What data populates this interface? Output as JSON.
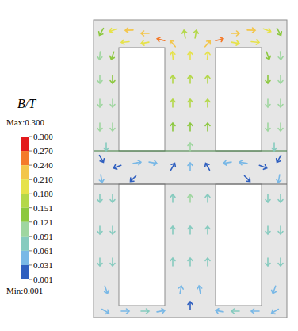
{
  "chart_data": {
    "type": "vector_field",
    "xlim": [
      0,
      244
    ],
    "ylim": [
      0,
      375
    ],
    "tick_labels": false,
    "colorbar": {
      "title": "B/T",
      "max_label": "Max:0.300",
      "min_label": "Min:0.001",
      "range": [
        0.001,
        0.3
      ],
      "ticks": [
        {
          "value": 0.3,
          "label": "0.300"
        },
        {
          "value": 0.27,
          "label": "0.270"
        },
        {
          "value": 0.24,
          "label": "0.240"
        },
        {
          "value": 0.21,
          "label": "0.210"
        },
        {
          "value": 0.18,
          "label": "0.180"
        },
        {
          "value": 0.151,
          "label": "0.151"
        },
        {
          "value": 0.121,
          "label": "0.121"
        },
        {
          "value": 0.091,
          "label": "0.091"
        },
        {
          "value": 0.061,
          "label": "0.061"
        },
        {
          "value": 0.031,
          "label": "0.031"
        },
        {
          "value": 0.001,
          "label": "0.001"
        }
      ],
      "colors": [
        "#e31a1c",
        "#f47a2a",
        "#f3c64b",
        "#e6e24a",
        "#b4d84a",
        "#8cc83f",
        "#9fd6a0",
        "#86cbbf",
        "#79b8e6",
        "#2f5fbf"
      ]
    },
    "vectors": [
      {
        "x": 10,
        "y": 360,
        "angle": 240,
        "B": 0.13
      },
      {
        "x": 25,
        "y": 362,
        "angle": 200,
        "B": 0.18
      },
      {
        "x": 45,
        "y": 362,
        "angle": 182,
        "B": 0.21
      },
      {
        "x": 65,
        "y": 358,
        "angle": 180,
        "B": 0.23
      },
      {
        "x": 85,
        "y": 350,
        "angle": 165,
        "B": 0.26
      },
      {
        "x": 100,
        "y": 345,
        "angle": 130,
        "B": 0.22
      },
      {
        "x": 115,
        "y": 357,
        "angle": 100,
        "B": 0.16
      },
      {
        "x": 129,
        "y": 357,
        "angle": 80,
        "B": 0.16
      },
      {
        "x": 144,
        "y": 345,
        "angle": 50,
        "B": 0.22
      },
      {
        "x": 159,
        "y": 350,
        "angle": 15,
        "B": 0.26
      },
      {
        "x": 179,
        "y": 358,
        "angle": 0,
        "B": 0.23
      },
      {
        "x": 199,
        "y": 362,
        "angle": 358,
        "B": 0.21
      },
      {
        "x": 219,
        "y": 362,
        "angle": 340,
        "B": 0.18
      },
      {
        "x": 234,
        "y": 360,
        "angle": 300,
        "B": 0.13
      },
      {
        "x": 40,
        "y": 347,
        "angle": 185,
        "B": 0.19
      },
      {
        "x": 65,
        "y": 346,
        "angle": 190,
        "B": 0.2
      },
      {
        "x": 179,
        "y": 346,
        "angle": 350,
        "B": 0.2
      },
      {
        "x": 204,
        "y": 347,
        "angle": 355,
        "B": 0.19
      },
      {
        "x": 8,
        "y": 330,
        "angle": 265,
        "B": 0.12
      },
      {
        "x": 24,
        "y": 330,
        "angle": 250,
        "B": 0.15
      },
      {
        "x": 8,
        "y": 300,
        "angle": 270,
        "B": 0.12
      },
      {
        "x": 24,
        "y": 300,
        "angle": 270,
        "B": 0.13
      },
      {
        "x": 8,
        "y": 270,
        "angle": 270,
        "B": 0.11
      },
      {
        "x": 24,
        "y": 270,
        "angle": 270,
        "B": 0.12
      },
      {
        "x": 8,
        "y": 240,
        "angle": 270,
        "B": 0.11
      },
      {
        "x": 24,
        "y": 240,
        "angle": 270,
        "B": 0.11
      },
      {
        "x": 16,
        "y": 215,
        "angle": 270,
        "B": 0.09
      },
      {
        "x": 236,
        "y": 330,
        "angle": 275,
        "B": 0.12
      },
      {
        "x": 220,
        "y": 330,
        "angle": 290,
        "B": 0.15
      },
      {
        "x": 236,
        "y": 300,
        "angle": 270,
        "B": 0.12
      },
      {
        "x": 220,
        "y": 300,
        "angle": 270,
        "B": 0.13
      },
      {
        "x": 236,
        "y": 270,
        "angle": 270,
        "B": 0.11
      },
      {
        "x": 220,
        "y": 270,
        "angle": 270,
        "B": 0.12
      },
      {
        "x": 236,
        "y": 240,
        "angle": 270,
        "B": 0.11
      },
      {
        "x": 220,
        "y": 240,
        "angle": 270,
        "B": 0.11
      },
      {
        "x": 228,
        "y": 215,
        "angle": 270,
        "B": 0.09
      },
      {
        "x": 100,
        "y": 330,
        "angle": 95,
        "B": 0.2
      },
      {
        "x": 122,
        "y": 330,
        "angle": 90,
        "B": 0.18
      },
      {
        "x": 144,
        "y": 330,
        "angle": 85,
        "B": 0.2
      },
      {
        "x": 100,
        "y": 300,
        "angle": 90,
        "B": 0.17
      },
      {
        "x": 122,
        "y": 300,
        "angle": 90,
        "B": 0.16
      },
      {
        "x": 144,
        "y": 300,
        "angle": 90,
        "B": 0.17
      },
      {
        "x": 100,
        "y": 270,
        "angle": 90,
        "B": 0.17
      },
      {
        "x": 122,
        "y": 270,
        "angle": 90,
        "B": 0.16
      },
      {
        "x": 144,
        "y": 270,
        "angle": 90,
        "B": 0.17
      },
      {
        "x": 100,
        "y": 240,
        "angle": 90,
        "B": 0.15
      },
      {
        "x": 122,
        "y": 240,
        "angle": 90,
        "B": 0.14
      },
      {
        "x": 144,
        "y": 240,
        "angle": 90,
        "B": 0.15
      },
      {
        "x": 122,
        "y": 215,
        "angle": 90,
        "B": 0.1
      },
      {
        "x": 10,
        "y": 200,
        "angle": 300,
        "B": 0.02
      },
      {
        "x": 30,
        "y": 190,
        "angle": 200,
        "B": 0.03
      },
      {
        "x": 55,
        "y": 195,
        "angle": 10,
        "B": 0.04
      },
      {
        "x": 75,
        "y": 195,
        "angle": 350,
        "B": 0.05
      },
      {
        "x": 100,
        "y": 190,
        "angle": 60,
        "B": 0.03
      },
      {
        "x": 122,
        "y": 190,
        "angle": 90,
        "B": 0.05
      },
      {
        "x": 144,
        "y": 190,
        "angle": 120,
        "B": 0.03
      },
      {
        "x": 169,
        "y": 195,
        "angle": 190,
        "B": 0.05
      },
      {
        "x": 189,
        "y": 195,
        "angle": 170,
        "B": 0.04
      },
      {
        "x": 214,
        "y": 190,
        "angle": 340,
        "B": 0.03
      },
      {
        "x": 234,
        "y": 200,
        "angle": 240,
        "B": 0.02
      },
      {
        "x": 10,
        "y": 175,
        "angle": 280,
        "B": 0.04
      },
      {
        "x": 234,
        "y": 175,
        "angle": 260,
        "B": 0.04
      },
      {
        "x": 50,
        "y": 175,
        "angle": 225,
        "B": 0.03
      },
      {
        "x": 194,
        "y": 175,
        "angle": 315,
        "B": 0.03
      },
      {
        "x": 100,
        "y": 150,
        "angle": 90,
        "B": 0.09
      },
      {
        "x": 122,
        "y": 150,
        "angle": 90,
        "B": 0.1
      },
      {
        "x": 144,
        "y": 150,
        "angle": 90,
        "B": 0.09
      },
      {
        "x": 100,
        "y": 110,
        "angle": 90,
        "B": 0.09
      },
      {
        "x": 122,
        "y": 110,
        "angle": 90,
        "B": 0.09
      },
      {
        "x": 144,
        "y": 110,
        "angle": 90,
        "B": 0.09
      },
      {
        "x": 100,
        "y": 70,
        "angle": 90,
        "B": 0.09
      },
      {
        "x": 122,
        "y": 70,
        "angle": 90,
        "B": 0.09
      },
      {
        "x": 144,
        "y": 70,
        "angle": 90,
        "B": 0.09
      },
      {
        "x": 110,
        "y": 35,
        "angle": 80,
        "B": 0.06
      },
      {
        "x": 134,
        "y": 35,
        "angle": 100,
        "B": 0.06
      },
      {
        "x": 122,
        "y": 15,
        "angle": 90,
        "B": 0.03
      },
      {
        "x": 8,
        "y": 150,
        "angle": 270,
        "B": 0.07
      },
      {
        "x": 24,
        "y": 150,
        "angle": 270,
        "B": 0.08
      },
      {
        "x": 8,
        "y": 110,
        "angle": 270,
        "B": 0.08
      },
      {
        "x": 24,
        "y": 110,
        "angle": 270,
        "B": 0.08
      },
      {
        "x": 8,
        "y": 70,
        "angle": 270,
        "B": 0.08
      },
      {
        "x": 24,
        "y": 70,
        "angle": 270,
        "B": 0.08
      },
      {
        "x": 16,
        "y": 35,
        "angle": 290,
        "B": 0.06
      },
      {
        "x": 236,
        "y": 150,
        "angle": 270,
        "B": 0.07
      },
      {
        "x": 220,
        "y": 150,
        "angle": 270,
        "B": 0.08
      },
      {
        "x": 236,
        "y": 110,
        "angle": 270,
        "B": 0.08
      },
      {
        "x": 220,
        "y": 110,
        "angle": 270,
        "B": 0.08
      },
      {
        "x": 236,
        "y": 70,
        "angle": 270,
        "B": 0.08
      },
      {
        "x": 220,
        "y": 70,
        "angle": 270,
        "B": 0.08
      },
      {
        "x": 228,
        "y": 35,
        "angle": 250,
        "B": 0.06
      },
      {
        "x": 15,
        "y": 8,
        "angle": 330,
        "B": 0.04
      },
      {
        "x": 40,
        "y": 8,
        "angle": 0,
        "B": 0.06
      },
      {
        "x": 65,
        "y": 8,
        "angle": 0,
        "B": 0.07
      },
      {
        "x": 85,
        "y": 8,
        "angle": 10,
        "B": 0.06
      },
      {
        "x": 159,
        "y": 8,
        "angle": 170,
        "B": 0.06
      },
      {
        "x": 179,
        "y": 8,
        "angle": 180,
        "B": 0.07
      },
      {
        "x": 204,
        "y": 8,
        "angle": 180,
        "B": 0.06
      },
      {
        "x": 229,
        "y": 8,
        "angle": 210,
        "B": 0.04
      }
    ]
  }
}
